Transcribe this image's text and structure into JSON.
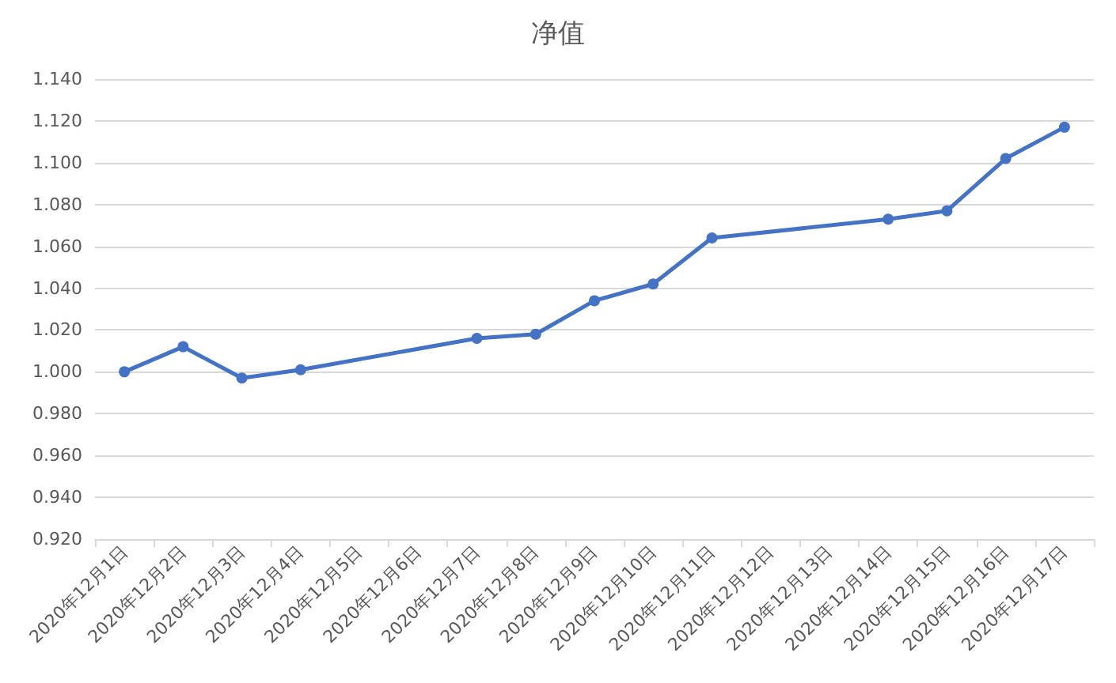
{
  "chart_data": {
    "type": "line",
    "title": "净值",
    "categories": [
      "2020年12月1日",
      "2020年12月2日",
      "2020年12月3日",
      "2020年12月4日",
      "2020年12月5日",
      "2020年12月6日",
      "2020年12月7日",
      "2020年12月8日",
      "2020年12月9日",
      "2020年12月10日",
      "2020年12月11日",
      "2020年12月12日",
      "2020年12月13日",
      "2020年12月14日",
      "2020年12月15日",
      "2020年12月16日",
      "2020年12月17日"
    ],
    "series": [
      {
        "color": "#4472c4",
        "x": [
          "2020年12月1日",
          "2020年12月2日",
          "2020年12月3日",
          "2020年12月4日",
          "2020年12月7日",
          "2020年12月8日",
          "2020年12月9日",
          "2020年12月10日",
          "2020年12月11日",
          "2020年12月14日",
          "2020年12月15日",
          "2020年12月16日",
          "2020年12月17日"
        ],
        "values": [
          1.0,
          1.012,
          0.997,
          1.001,
          1.016,
          1.018,
          1.034,
          1.042,
          1.064,
          1.073,
          1.077,
          1.102,
          1.117
        ]
      }
    ],
    "ylim": [
      0.92,
      1.14
    ],
    "yticks": [
      {
        "value": 0.92,
        "label": "0.920"
      },
      {
        "value": 0.94,
        "label": "0.940"
      },
      {
        "value": 0.96,
        "label": "0.960"
      },
      {
        "value": 0.98,
        "label": "0.980"
      },
      {
        "value": 1.0,
        "label": "1.000"
      },
      {
        "value": 1.02,
        "label": "1.020"
      },
      {
        "value": 1.04,
        "label": "1.040"
      },
      {
        "value": 1.06,
        "label": "1.060"
      },
      {
        "value": 1.08,
        "label": "1.080"
      },
      {
        "value": 1.1,
        "label": "1.100"
      },
      {
        "value": 1.12,
        "label": "1.120"
      },
      {
        "value": 1.14,
        "label": "1.140"
      }
    ],
    "grid": "y",
    "marker": "circle",
    "line_style": "solid"
  }
}
